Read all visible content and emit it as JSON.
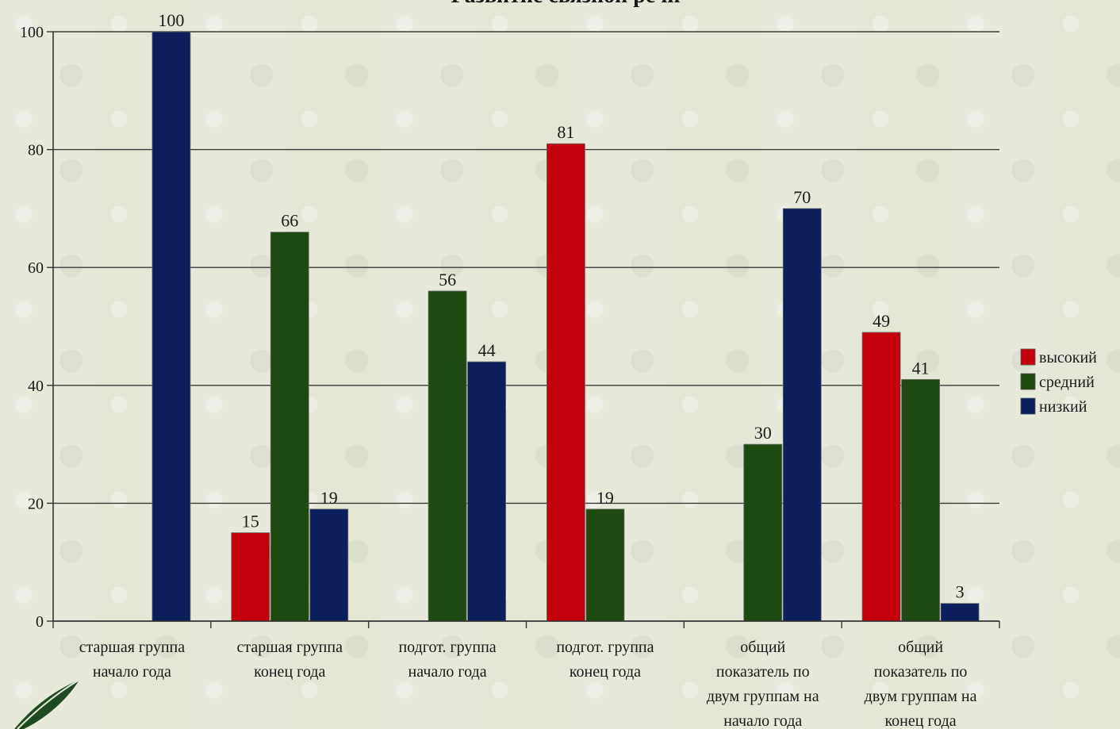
{
  "chart_data": {
    "type": "bar",
    "title": "Развитие связной речи",
    "xlabel": "",
    "ylabel": "",
    "ylim": [
      0,
      100
    ],
    "yticks": [
      0,
      20,
      40,
      60,
      80,
      100
    ],
    "grid": true,
    "legend_position": "right",
    "categories": [
      [
        "старшая группа",
        "начало года"
      ],
      [
        "старшая группа",
        "конец года"
      ],
      [
        "подгот. группа",
        "начало года"
      ],
      [
        "подгот. группа",
        "конец года"
      ],
      [
        "общий",
        "показатель по",
        "двум группам на",
        "начало года"
      ],
      [
        "общий",
        "показатель по",
        "двум группам на",
        "конец года"
      ]
    ],
    "series": [
      {
        "name": "высокий",
        "color": "#c4000c",
        "values": [
          0,
          15,
          0,
          81,
          0,
          49
        ]
      },
      {
        "name": "средний",
        "color": "#1e4a12",
        "values": [
          0,
          66,
          56,
          19,
          30,
          41
        ]
      },
      {
        "name": "низкий",
        "color": "#0c1f5c",
        "values": [
          100,
          19,
          44,
          0,
          70,
          3
        ]
      }
    ]
  }
}
